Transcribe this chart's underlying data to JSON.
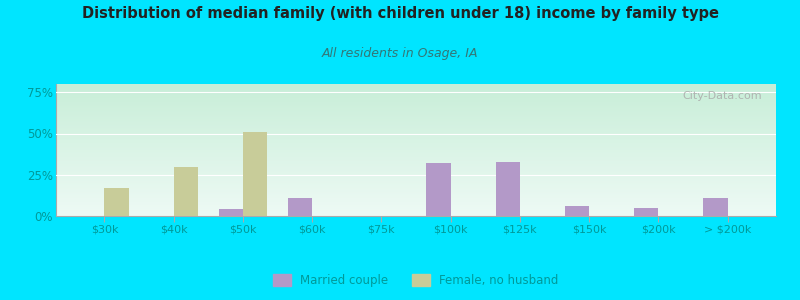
{
  "title": "Distribution of median family (with children under 18) income by family type",
  "subtitle": "All residents in Osage, IA",
  "categories": [
    "$30k",
    "$40k",
    "$50k",
    "$60k",
    "$75k",
    "$100k",
    "$125k",
    "$150k",
    "$200k",
    "> $200k"
  ],
  "married_couple": [
    0,
    0,
    4,
    11,
    0,
    32,
    33,
    6,
    5,
    11
  ],
  "female_no_husband": [
    17,
    30,
    51,
    0,
    0,
    0,
    0,
    0,
    0,
    0
  ],
  "married_color": "#b399c8",
  "female_color": "#c8cc99",
  "background_outer": "#00e5ff",
  "title_color": "#222222",
  "subtitle_color": "#337777",
  "axis_label_color": "#009999",
  "yticks": [
    0,
    25,
    50,
    75
  ],
  "ylim": [
    0,
    80
  ],
  "bar_width": 0.35,
  "watermark": "City-Data.com",
  "grad_top": "#c8eed8",
  "grad_bottom": "#eefaf5"
}
